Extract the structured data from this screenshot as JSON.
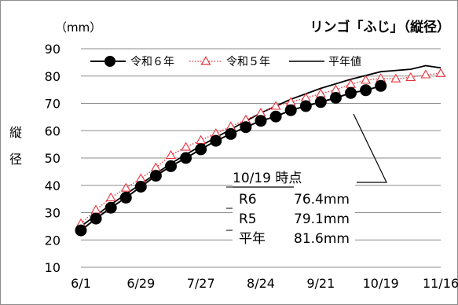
{
  "chart_data": {
    "type": "line",
    "title": "リンゴ「ふじ」（縦径）",
    "unit_label": "（mm）",
    "ylabel_chars": [
      "縦",
      "径"
    ],
    "ylim": [
      10,
      90
    ],
    "yticks": [
      10,
      20,
      30,
      40,
      50,
      60,
      70,
      80,
      90
    ],
    "xticks": [
      {
        "label": "6/1",
        "day": 0
      },
      {
        "label": "6/29",
        "day": 28
      },
      {
        "label": "7/27",
        "day": 56
      },
      {
        "label": "8/24",
        "day": 84
      },
      {
        "label": "9/21",
        "day": 112
      },
      {
        "label": "10/19",
        "day": 140
      },
      {
        "label": "11/16",
        "day": 168
      }
    ],
    "xlim_day": [
      0,
      168
    ],
    "grid": true,
    "legend_position": "top",
    "series": [
      {
        "name": "令和６年",
        "style": "line-filled-circle",
        "color": "#000000",
        "x_day": [
          0,
          7,
          14,
          21,
          28,
          35,
          42,
          49,
          56,
          63,
          70,
          77,
          84,
          91,
          98,
          105,
          112,
          119,
          126,
          133,
          140
        ],
        "values": [
          23.5,
          27.8,
          31.8,
          35.5,
          39.5,
          43.5,
          47.0,
          50.0,
          53.2,
          56.3,
          58.8,
          61.3,
          63.6,
          65.2,
          67.5,
          69.0,
          70.5,
          72.0,
          73.8,
          74.8,
          76.4
        ]
      },
      {
        "name": "令和５年",
        "style": "dotted-open-triangle",
        "color": "#E8303A",
        "x_day": [
          0,
          7,
          14,
          21,
          28,
          35,
          42,
          49,
          56,
          63,
          70,
          77,
          84,
          91,
          98,
          105,
          112,
          119,
          126,
          133,
          140,
          147,
          154,
          161,
          168
        ],
        "values": [
          26.0,
          31.0,
          35.5,
          39.0,
          42.5,
          46.5,
          51.0,
          54.0,
          56.5,
          59.0,
          61.5,
          64.0,
          66.5,
          69.0,
          70.5,
          72.0,
          73.5,
          75.0,
          77.0,
          78.5,
          79.1,
          79.0,
          79.5,
          80.5,
          81.0
        ]
      },
      {
        "name": "平年値",
        "style": "solid-line",
        "color": "#000000",
        "x_day": [
          0,
          14,
          28,
          42,
          56,
          70,
          84,
          98,
          112,
          126,
          140,
          154,
          161,
          168
        ],
        "values": [
          25.0,
          33.0,
          40.5,
          48.0,
          54.5,
          60.5,
          66.5,
          71.5,
          75.5,
          78.8,
          81.6,
          82.5,
          83.8,
          83.0
        ]
      }
    ],
    "annotation": {
      "heading": "10/19 時点",
      "rows": [
        {
          "label": "R6",
          "value": "76.4mm"
        },
        {
          "label": "R5",
          "value": "79.1mm"
        },
        {
          "label": "平年",
          "value": "81.6mm"
        }
      ]
    }
  }
}
